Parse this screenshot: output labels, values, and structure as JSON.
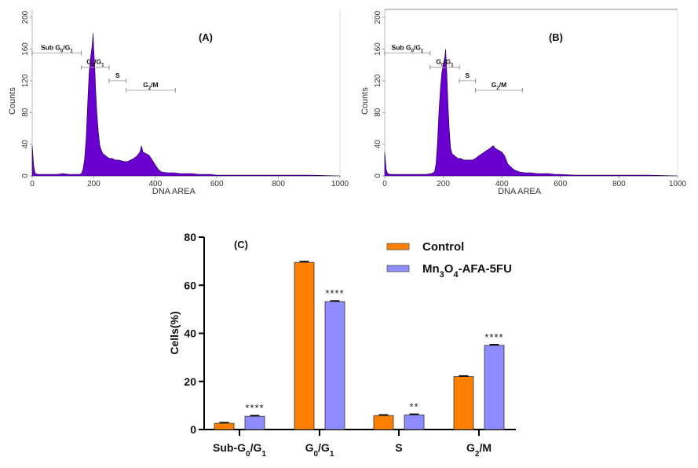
{
  "chart_data": [
    {
      "id": "A",
      "type": "area",
      "panel_label": "(A)",
      "title": "",
      "xlabel": "DNA AREA",
      "ylabel": "Counts",
      "xlim": [
        0,
        1000
      ],
      "ylim": [
        0,
        210
      ],
      "xticks": [
        0,
        200,
        400,
        600,
        800,
        1000
      ],
      "yticks": [
        0,
        40,
        80,
        120,
        160,
        200
      ],
      "fill_color": "#6a00d0",
      "gates": [
        {
          "label": "Sub G0/G1",
          "main": "Sub G",
          "sub1": "0",
          "mid": "/G",
          "sub2": "1",
          "range": [
            0,
            160
          ],
          "y": 155
        },
        {
          "label": "G0/G1",
          "main": "G",
          "sub1": "0",
          "mid": "/G",
          "sub2": "1",
          "range": [
            160,
            250
          ],
          "y": 137
        },
        {
          "label": "S",
          "main": "S",
          "sub1": "",
          "mid": "",
          "sub2": "",
          "range": [
            250,
            305
          ],
          "y": 120
        },
        {
          "label": "G2/M",
          "main": "G",
          "sub1": "2",
          "mid": "/M",
          "sub2": "",
          "range": [
            305,
            465
          ],
          "y": 108
        }
      ],
      "histogram": {
        "x": [
          0,
          5,
          10,
          20,
          40,
          60,
          80,
          100,
          120,
          140,
          155,
          160,
          165,
          170,
          175,
          180,
          185,
          190,
          195,
          198,
          200,
          203,
          206,
          210,
          215,
          220,
          225,
          230,
          240,
          250,
          260,
          270,
          280,
          290,
          300,
          310,
          320,
          330,
          340,
          350,
          355,
          360,
          370,
          380,
          390,
          400,
          410,
          420,
          440,
          460,
          480,
          500,
          520,
          540,
          560,
          580,
          600,
          650,
          700,
          800,
          900,
          1000
        ],
        "y": [
          38,
          12,
          3,
          2,
          2,
          2,
          2,
          3,
          2,
          2,
          2,
          3,
          8,
          20,
          45,
          90,
          130,
          150,
          165,
          180,
          160,
          140,
          110,
          80,
          55,
          38,
          32,
          28,
          25,
          22,
          22,
          20,
          20,
          19,
          18,
          18,
          20,
          22,
          25,
          30,
          38,
          30,
          28,
          26,
          20,
          14,
          8,
          5,
          4,
          4,
          3,
          3,
          3,
          2,
          2,
          2,
          1,
          1,
          1,
          1,
          1,
          0
        ]
      }
    },
    {
      "id": "B",
      "type": "area",
      "panel_label": "(B)",
      "title": "",
      "xlabel": "DNA AREA",
      "ylabel": "Counts",
      "xlim": [
        0,
        1000
      ],
      "ylim": [
        0,
        210
      ],
      "xticks": [
        0,
        200,
        400,
        600,
        800,
        1000
      ],
      "yticks": [
        0,
        40,
        80,
        120,
        160,
        200
      ],
      "fill_color": "#6a00d0",
      "gates": [
        {
          "label": "Sub G0/G1",
          "main": "Sub G",
          "sub1": "0",
          "mid": "/G",
          "sub2": "1",
          "range": [
            0,
            155
          ],
          "y": 155
        },
        {
          "label": "G0/G1",
          "main": "G",
          "sub1": "0",
          "mid": "/G",
          "sub2": "1",
          "range": [
            155,
            255
          ],
          "y": 137
        },
        {
          "label": "S",
          "main": "S",
          "sub1": "",
          "mid": "",
          "sub2": "",
          "range": [
            255,
            310
          ],
          "y": 120
        },
        {
          "label": "G2/M",
          "main": "G",
          "sub1": "2",
          "mid": "/M",
          "sub2": "",
          "range": [
            310,
            470
          ],
          "y": 108
        }
      ],
      "histogram": {
        "x": [
          0,
          5,
          10,
          20,
          40,
          60,
          80,
          100,
          120,
          140,
          160,
          170,
          175,
          180,
          185,
          190,
          195,
          200,
          205,
          208,
          212,
          216,
          220,
          225,
          230,
          240,
          250,
          260,
          270,
          280,
          290,
          300,
          310,
          320,
          340,
          360,
          370,
          380,
          390,
          400,
          410,
          420,
          440,
          460,
          480,
          500,
          520,
          540,
          560,
          580,
          600,
          650,
          700,
          800,
          900,
          1000
        ],
        "y": [
          30,
          8,
          3,
          2,
          2,
          2,
          2,
          2,
          2,
          2,
          3,
          5,
          15,
          40,
          80,
          110,
          130,
          140,
          150,
          160,
          130,
          90,
          60,
          35,
          28,
          25,
          22,
          22,
          20,
          20,
          20,
          20,
          22,
          25,
          30,
          35,
          38,
          34,
          32,
          30,
          25,
          15,
          8,
          5,
          4,
          4,
          3,
          3,
          3,
          2,
          2,
          1,
          1,
          1,
          1,
          0
        ]
      }
    },
    {
      "id": "C",
      "type": "bar",
      "panel_label": "(C)",
      "title": "",
      "xlabel": "",
      "ylabel": "Cells(%)",
      "ylim": [
        0,
        80
      ],
      "yticks": [
        0,
        20,
        40,
        60,
        80
      ],
      "grid": false,
      "legend_position": "top-right",
      "categories": [
        {
          "label": "Sub-G0/G1",
          "parts": [
            [
              "Sub-G",
              ""
            ],
            [
              "0",
              "sub"
            ],
            [
              "/G",
              ""
            ],
            [
              "1",
              "sub"
            ]
          ]
        },
        {
          "label": "G0/G1",
          "parts": [
            [
              "G",
              ""
            ],
            [
              "0",
              "sub"
            ],
            [
              "/G",
              ""
            ],
            [
              "1",
              "sub"
            ]
          ]
        },
        {
          "label": "S",
          "parts": [
            [
              "S",
              ""
            ]
          ]
        },
        {
          "label": "G2/M",
          "parts": [
            [
              "G",
              ""
            ],
            [
              "2",
              "sub"
            ],
            [
              "/M",
              ""
            ]
          ]
        }
      ],
      "series": [
        {
          "name": "Control",
          "name_parts": [
            [
              "Control",
              ""
            ]
          ],
          "color": "#ff8000",
          "values": [
            2.6,
            69.5,
            5.8,
            22.0
          ],
          "errors": [
            0.3,
            0.4,
            0.3,
            0.3
          ],
          "significance": [
            "",
            "",
            "",
            ""
          ]
        },
        {
          "name": "Mn3O4-AFA-5FU",
          "name_parts": [
            [
              "Mn",
              ""
            ],
            [
              "3",
              "sub"
            ],
            [
              "O",
              ""
            ],
            [
              "4",
              "sub"
            ],
            [
              "-AFA-5FU",
              ""
            ]
          ],
          "color": "#8f8cff",
          "values": [
            5.5,
            53.2,
            6.1,
            35.0
          ],
          "errors": [
            0.3,
            0.3,
            0.3,
            0.3
          ],
          "significance": [
            "****",
            "****",
            "**",
            "****"
          ]
        }
      ]
    }
  ]
}
